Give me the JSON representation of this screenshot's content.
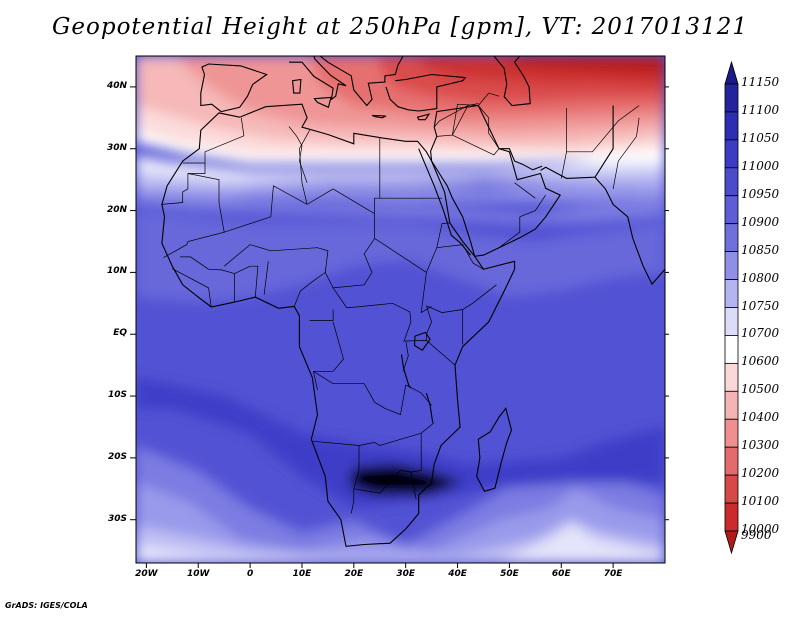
{
  "title": "Geopotential Height at 250hPa [gpm], VT: 2017013121",
  "credit": "GrADS: IGES/COLA",
  "lat_labels": [
    "40N",
    "30N",
    "20N",
    "10N",
    "EQ",
    "10S",
    "20S",
    "30S"
  ],
  "lat_values": [
    40,
    30,
    20,
    10,
    0,
    -10,
    -20,
    -30
  ],
  "lon_labels": [
    "20W",
    "10W",
    "0",
    "10E",
    "20E",
    "30E",
    "40E",
    "50E",
    "60E",
    "70E"
  ],
  "lon_values": [
    -20,
    -10,
    0,
    10,
    20,
    30,
    40,
    50,
    60,
    70
  ],
  "colorbar": {
    "labels": [
      "11150",
      "11100",
      "11050",
      "11000",
      "10950",
      "10900",
      "10850",
      "10800",
      "10750",
      "10700",
      "10600",
      "10500",
      "10400",
      "10300",
      "10200",
      "10100",
      "10000",
      "9900"
    ],
    "colors": [
      "#1a1a8a",
      "#2323a0",
      "#2e2eb4",
      "#3b3bc4",
      "#4b4bcc",
      "#5d5dd6",
      "#7070dd",
      "#8f8fe6",
      "#b4b4f0",
      "#dcdcf8",
      "#ffffff",
      "#fbd8d8",
      "#f4b4b4",
      "#ee9090",
      "#e36b6b",
      "#d94848",
      "#cc2b2b",
      "#b21a1a"
    ]
  },
  "map": {
    "extent": {
      "lon_min": -22,
      "lon_max": 80,
      "lat_min": -37,
      "lat_max": 45
    },
    "colors": {
      "h11000": "#3e3ec8",
      "h10950": "#5252d4",
      "h10900": "#6767db",
      "h10850": "#7b7be2",
      "h10800": "#9a9aeb",
      "h10750": "#c0c0f3",
      "h10700": "#e4e4fa",
      "h10600": "#ffffff",
      "h10500": "#fcdcdc",
      "h10400": "#f6b8b8",
      "h10300": "#ef9595",
      "h10200": "#e67070",
      "h10100": "#da4c4c",
      "h10000": "#cc3030",
      "h9900": "#b71f1f",
      "coast": "#000000"
    }
  }
}
